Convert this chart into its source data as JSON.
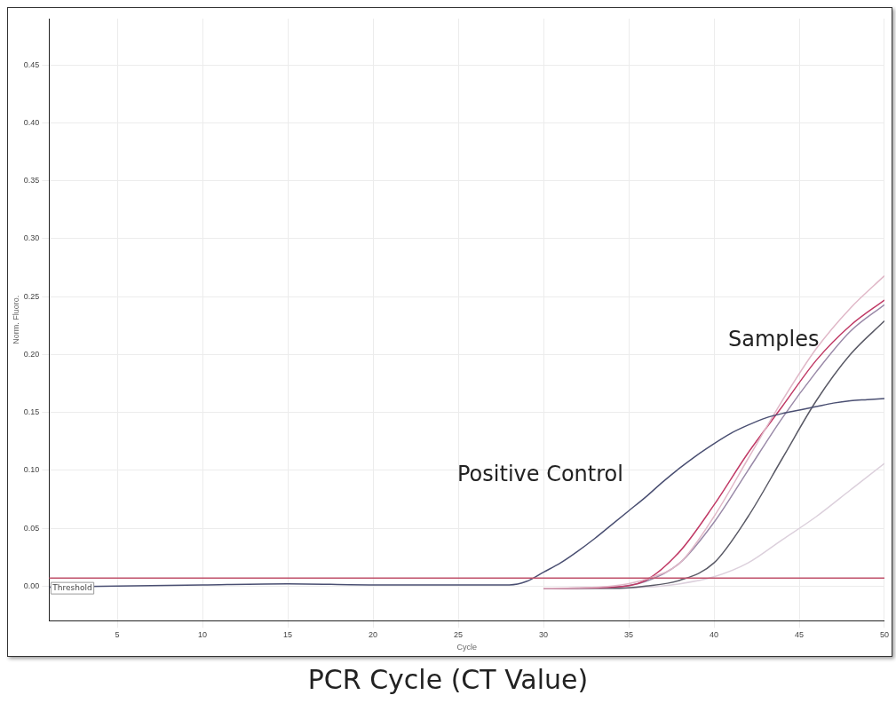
{
  "chart_data": {
    "type": "line",
    "xlabel": "Cycle",
    "ylabel": "Norm. Fluoro.",
    "xlim": [
      1,
      50
    ],
    "xticks": [
      5,
      10,
      15,
      20,
      25,
      30,
      35,
      40,
      45,
      50
    ],
    "ylim": [
      -0.03,
      0.49
    ],
    "yticks": [
      {
        "value": 0,
        "label": "0.00"
      },
      {
        "value": 0.05,
        "label": "0.05"
      },
      {
        "value": 0.1,
        "label": "0.10"
      },
      {
        "value": 0.15,
        "label": "0.15"
      },
      {
        "value": 0.2,
        "label": "0.20"
      },
      {
        "value": 0.25,
        "label": "0.25"
      },
      {
        "value": 0.3,
        "label": "0.30"
      },
      {
        "value": 0.35,
        "label": "0.35"
      },
      {
        "value": 0.4,
        "label": "0.40"
      },
      {
        "value": 0.45,
        "label": "0.45"
      }
    ],
    "grid": true,
    "legend": false,
    "marker": "none",
    "line_style": "solid",
    "ref_lines": [
      {
        "axis": "y",
        "value": 0.007,
        "label": "Threshold",
        "color": "#c0506a"
      }
    ],
    "annotations": [
      "Positive Control",
      "Samples",
      "PCR Cycle  (CT Value)"
    ],
    "series": [
      {
        "color": "#4a4f72",
        "x": [
          1,
          5,
          10,
          15,
          20,
          25,
          28,
          29,
          30,
          31,
          32,
          33,
          34,
          35,
          36,
          37,
          38,
          39,
          40,
          41,
          42,
          43,
          44,
          45,
          46,
          47,
          48,
          49,
          50
        ],
        "values": [
          -0.001,
          0,
          0.001,
          0.002,
          0.001,
          0.001,
          0.001,
          0.004,
          0.012,
          0.02,
          0.03,
          0.041,
          0.053,
          0.065,
          0.077,
          0.09,
          0.102,
          0.113,
          0.123,
          0.132,
          0.139,
          0.145,
          0.149,
          0.152,
          0.155,
          0.158,
          0.16,
          0.161,
          0.162
        ]
      },
      {
        "color": "#e0b8c8",
        "x": [
          30,
          34,
          36,
          38,
          40,
          42,
          44,
          46,
          48,
          50
        ],
        "values": [
          -0.002,
          0,
          0.006,
          0.02,
          0.06,
          0.11,
          0.16,
          0.205,
          0.24,
          0.268
        ]
      },
      {
        "color": "#c03a66",
        "x": [
          30,
          34,
          36,
          38,
          40,
          42,
          44,
          46,
          48,
          50
        ],
        "values": [
          -0.002,
          -0.001,
          0.005,
          0.03,
          0.07,
          0.115,
          0.155,
          0.195,
          0.225,
          0.247
        ]
      },
      {
        "color": "#9a8aa8",
        "x": [
          30,
          34,
          36,
          38,
          40,
          42,
          44,
          46,
          48,
          50
        ],
        "values": [
          -0.002,
          -0.001,
          0.004,
          0.02,
          0.055,
          0.1,
          0.145,
          0.185,
          0.22,
          0.243
        ]
      },
      {
        "color": "#5a5a66",
        "x": [
          30,
          34,
          36,
          38,
          40,
          42,
          44,
          46,
          48,
          50
        ],
        "values": [
          -0.002,
          -0.002,
          0,
          0.005,
          0.02,
          0.06,
          0.11,
          0.16,
          0.2,
          0.229
        ]
      },
      {
        "color": "#dcd0dc",
        "x": [
          30,
          34,
          36,
          38,
          40,
          42,
          44,
          46,
          48,
          50
        ],
        "values": [
          -0.002,
          -0.002,
          -0.001,
          0.002,
          0.008,
          0.02,
          0.04,
          0.06,
          0.083,
          0.106
        ]
      }
    ]
  }
}
